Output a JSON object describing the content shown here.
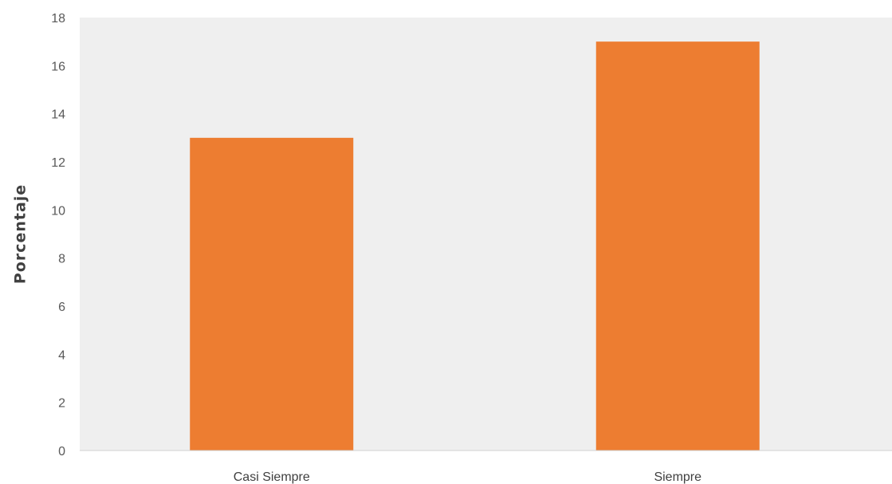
{
  "chart_data": {
    "type": "bar",
    "categories": [
      "Casi Siempre",
      "Siempre"
    ],
    "values": [
      13,
      17
    ],
    "ylabel": "Porcentaje",
    "ylim": [
      0,
      18
    ],
    "yticks": [
      0,
      2,
      4,
      6,
      8,
      10,
      12,
      14,
      16,
      18
    ],
    "grid": false,
    "bar_color": "#ED7D31",
    "plot_background": "#EFEFEF"
  }
}
